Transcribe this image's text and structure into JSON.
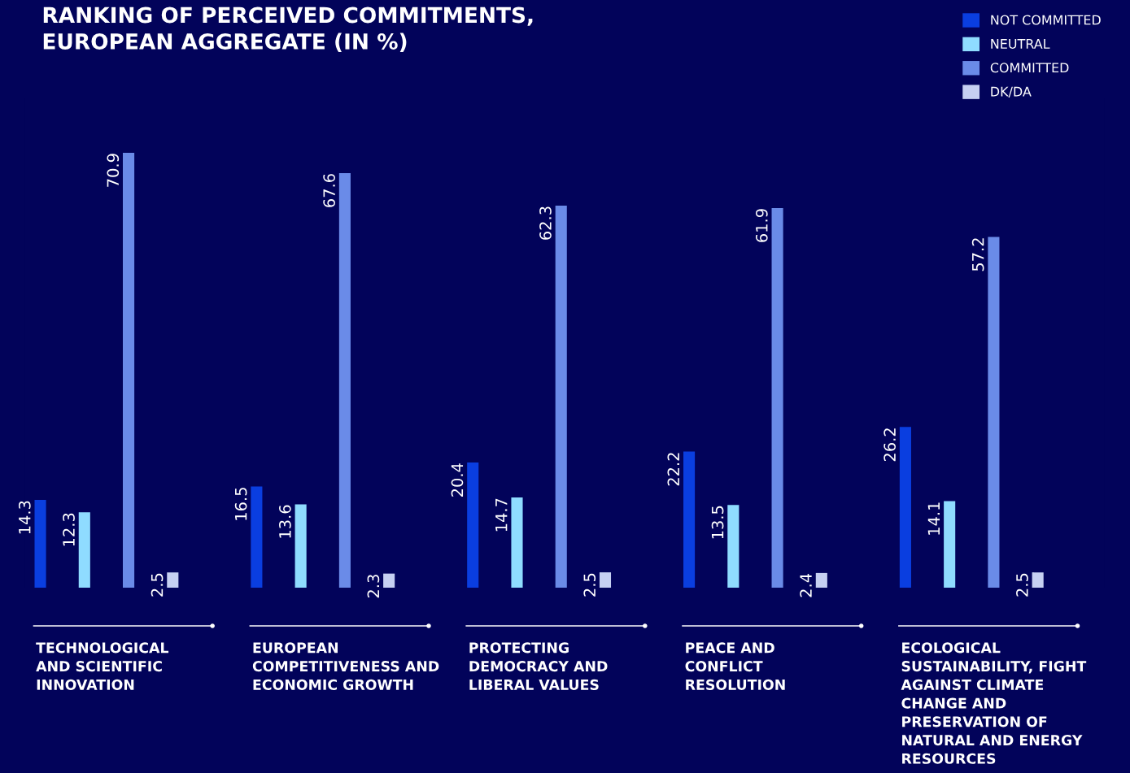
{
  "chart_data": {
    "type": "bar",
    "title": "RANKING OF PERCEIVED COMMITMENTS,\nEUROPEAN AGGREGATE (IN %)",
    "categories": [
      "TECHNOLOGICAL\nAND SCIENTIFIC\nINNOVATION",
      "EUROPEAN\nCOMPETITIVENESS AND\nECONOMIC GROWTH",
      "PROTECTING\nDEMOCRACY AND\nLIBERAL VALUES",
      "PEACE AND\nCONFLICT\nRESOLUTION",
      "ECOLOGICAL\nSUSTAINABILITY, FIGHT\nAGAINST CLIMATE\nCHANGE AND\nPRESERVATION OF\nNATURAL AND ENERGY\nRESOURCES"
    ],
    "series": [
      {
        "name": "NOT COMMITTED",
        "color": "#0a3ee0",
        "values": [
          14.3,
          16.5,
          20.4,
          22.2,
          26.2
        ]
      },
      {
        "name": "NEUTRAL",
        "color": "#8fdcff",
        "values": [
          12.3,
          13.6,
          14.7,
          13.5,
          14.1
        ]
      },
      {
        "name": "COMMITTED",
        "color": "#6a8be8",
        "values": [
          70.9,
          67.6,
          62.3,
          61.9,
          57.2
        ]
      },
      {
        "name": "DK/DA",
        "color": "#c6d0f2",
        "values": [
          2.5,
          2.3,
          2.5,
          2.4,
          2.5
        ]
      }
    ],
    "data_labels": true,
    "legend": "top right",
    "grid": false,
    "relative": false
  }
}
